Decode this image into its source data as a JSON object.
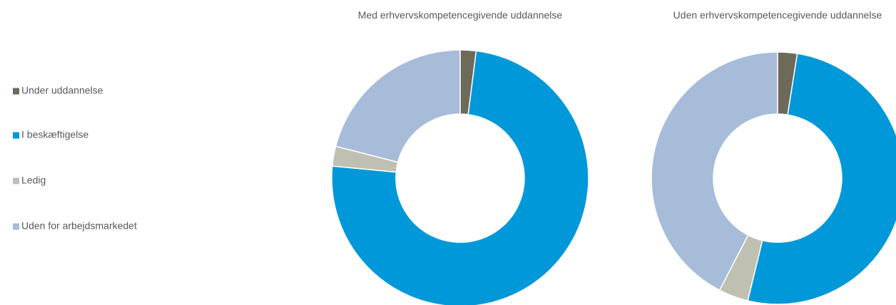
{
  "legend": {
    "labels": [
      "Under uddannelse",
      "I beskæftigelse",
      "Ledig",
      "Uden for arbejdsmarkedet"
    ],
    "colors": [
      "#6d6a5a",
      "#0098d8",
      "#c0c0b2",
      "#a6bcd9"
    ]
  },
  "chart_data": [
    {
      "type": "pie",
      "title": "Med erhvervskompetencegivende uddannelse",
      "values": [
        2,
        74.5,
        2.5,
        21
      ]
    },
    {
      "type": "pie",
      "title": "Uden erhvervskompetencegivende uddannelse",
      "values": [
        2.5,
        51.3,
        3.8,
        42.4
      ]
    }
  ]
}
